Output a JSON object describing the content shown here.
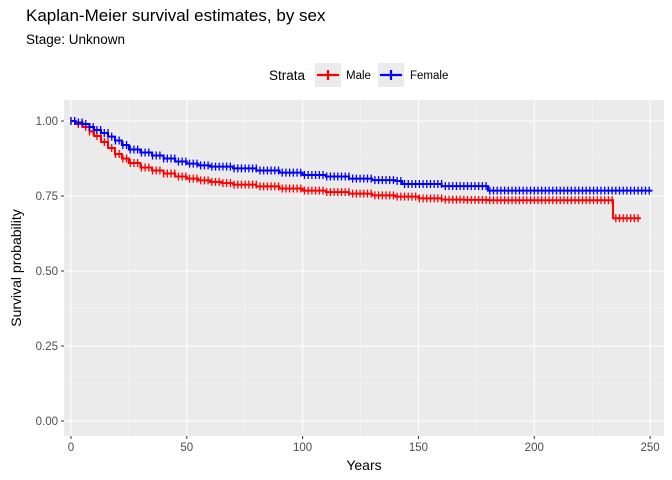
{
  "chart_data": {
    "type": "line",
    "title": "Kaplan-Meier survival estimates, by sex",
    "subtitle": "Stage: Unknown",
    "xlabel": "Years",
    "ylabel": "Survival probability",
    "xlim": [
      -3,
      256
    ],
    "ylim": [
      -0.05,
      1.07
    ],
    "x_ticks": [
      0,
      50,
      100,
      150,
      200,
      250
    ],
    "y_ticks": [
      0.0,
      0.25,
      0.5,
      0.75,
      1.0
    ],
    "y_tick_labels": [
      "0.00",
      "0.25",
      "0.50",
      "0.75",
      "1.00"
    ],
    "grid": true,
    "legend": {
      "title": "Strata",
      "position": "top"
    },
    "series": [
      {
        "name": "Male",
        "color": "#FF0000",
        "x": [
          0,
          2,
          5,
          8,
          10,
          13,
          16,
          19,
          22,
          25,
          30,
          35,
          40,
          45,
          50,
          55,
          60,
          65,
          70,
          80,
          90,
          100,
          110,
          120,
          130,
          140,
          150,
          160,
          170,
          180,
          200,
          220,
          234,
          234,
          246
        ],
        "y": [
          1.0,
          0.99,
          0.98,
          0.965,
          0.95,
          0.93,
          0.91,
          0.89,
          0.875,
          0.86,
          0.845,
          0.835,
          0.825,
          0.815,
          0.808,
          0.802,
          0.797,
          0.793,
          0.788,
          0.782,
          0.775,
          0.768,
          0.763,
          0.758,
          0.752,
          0.748,
          0.742,
          0.738,
          0.737,
          0.736,
          0.736,
          0.736,
          0.736,
          0.676,
          0.676
        ]
      },
      {
        "name": "Female",
        "color": "#0000FF",
        "x": [
          0,
          2,
          5,
          8,
          10,
          13,
          16,
          19,
          22,
          25,
          30,
          35,
          40,
          45,
          50,
          55,
          60,
          70,
          80,
          90,
          100,
          110,
          120,
          130,
          140,
          143,
          160,
          180,
          200,
          220,
          240,
          251
        ],
        "y": [
          1.0,
          0.995,
          0.99,
          0.98,
          0.97,
          0.96,
          0.948,
          0.935,
          0.92,
          0.905,
          0.895,
          0.885,
          0.875,
          0.865,
          0.858,
          0.852,
          0.848,
          0.842,
          0.835,
          0.828,
          0.82,
          0.815,
          0.808,
          0.803,
          0.8,
          0.79,
          0.783,
          0.768,
          0.768,
          0.768,
          0.768,
          0.768
        ]
      }
    ]
  }
}
